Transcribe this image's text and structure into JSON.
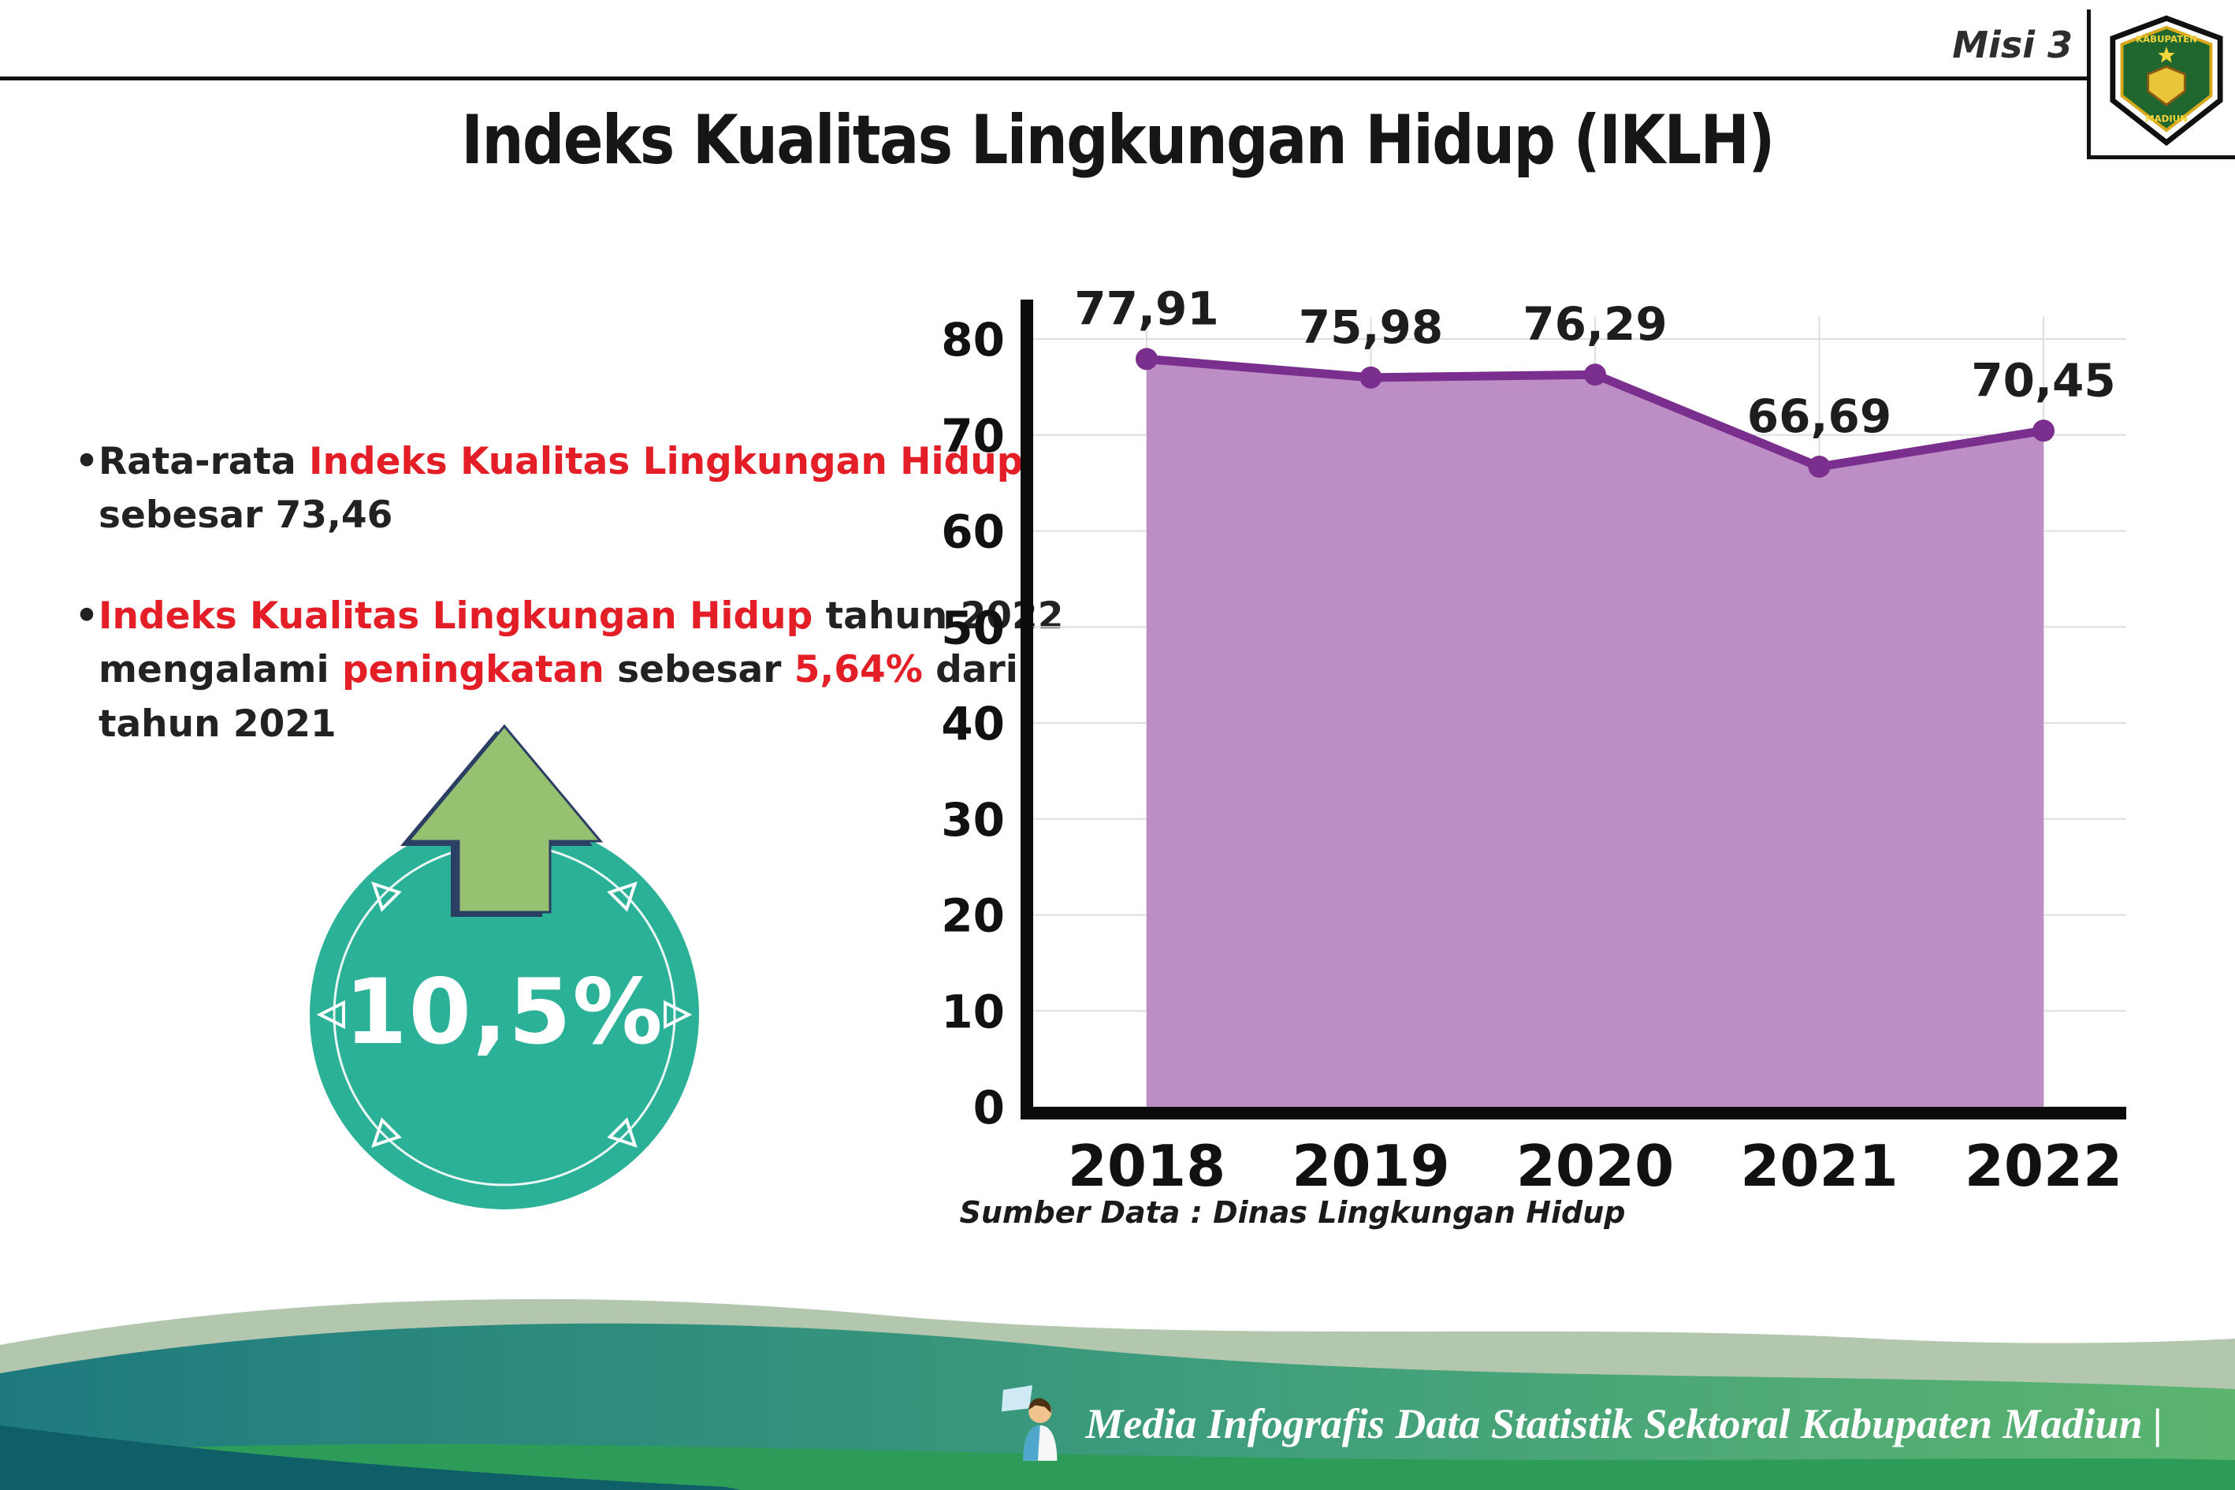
{
  "header": {
    "misi_label": "Misi 3",
    "title": "Indeks Kualitas Lingkungan Hidup (IKLH)"
  },
  "logo": {
    "top_text": "KABUPATEN",
    "bottom_text": "MADIUN"
  },
  "insights": {
    "bullet1": {
      "p1": "Rata-rata ",
      "p2": "Indeks Kualitas Lingkungan Hidup",
      "p3": " sebesar 73,46"
    },
    "bullet2": {
      "p1": "Indeks Kualitas Lingkungan Hidup",
      "p2": " tahun 2022 mengalami ",
      "p3": "peningkatan",
      "p4": " sebesar ",
      "p5": "5,64%",
      "p6": " dari tahun 2021"
    }
  },
  "badge": {
    "value": "10,5%",
    "circle_color": "#2ab197",
    "arrow_color": "#95c171",
    "arrow_outline_color": "#2b3e63"
  },
  "chart_data": {
    "type": "area",
    "categories": [
      "2018",
      "2019",
      "2020",
      "2021",
      "2022"
    ],
    "values": [
      77.91,
      75.98,
      76.29,
      66.69,
      70.45
    ],
    "value_labels": [
      "77,91",
      "75,98",
      "76,29",
      "66,69",
      "70,45"
    ],
    "ylim": [
      0,
      80
    ],
    "yticks": [
      0,
      10,
      20,
      30,
      40,
      50,
      60,
      70,
      80
    ],
    "grid": true,
    "legend": false,
    "xlabel": "",
    "ylabel": "",
    "area_color": "#bd8dc6",
    "line_color": "#7a2e8d",
    "source": "Sumber Data : Dinas Lingkungan Hidup"
  },
  "footer": {
    "credit": "Media Infografis Data Statistik Sektoral Kabupaten Madiun |"
  }
}
